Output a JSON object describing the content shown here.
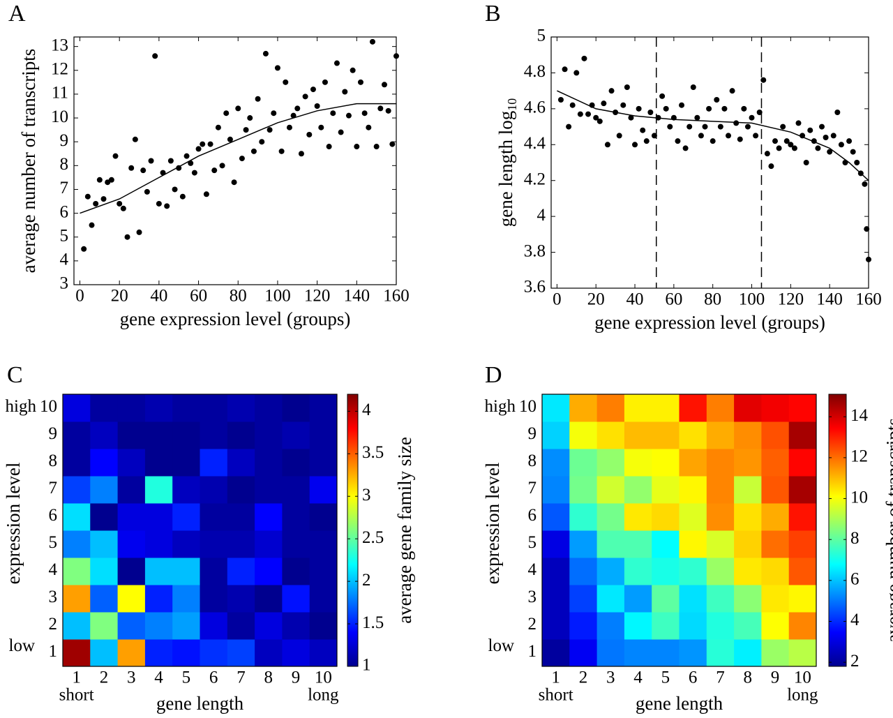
{
  "chart_data": [
    {
      "type": "scatter",
      "panel": "A",
      "xlabel": "gene expression level (groups)",
      "ylabel": "average number of transcripts",
      "color": "#000000",
      "xlim": [
        -3,
        160
      ],
      "ylim": [
        3,
        13.4
      ],
      "xticks": [
        0,
        20,
        40,
        60,
        80,
        100,
        120,
        140,
        160
      ],
      "yticks": [
        3,
        4,
        5,
        6,
        7,
        8,
        9,
        10,
        11,
        12,
        13
      ],
      "x": [
        2,
        4,
        6,
        8,
        10,
        12,
        14,
        16,
        18,
        20,
        22,
        24,
        26,
        28,
        30,
        32,
        34,
        36,
        38,
        40,
        42,
        44,
        46,
        48,
        50,
        52,
        54,
        56,
        58,
        60,
        62,
        64,
        66,
        68,
        70,
        72,
        74,
        76,
        78,
        80,
        82,
        84,
        86,
        88,
        90,
        92,
        94,
        96,
        98,
        100,
        102,
        104,
        106,
        108,
        110,
        112,
        114,
        116,
        118,
        120,
        122,
        124,
        126,
        128,
        130,
        132,
        134,
        136,
        138,
        140,
        142,
        144,
        146,
        148,
        150,
        152,
        154,
        156,
        158,
        160
      ],
      "y": [
        4.5,
        6.7,
        5.5,
        6.4,
        7.4,
        6.6,
        7.3,
        7.4,
        8.4,
        6.4,
        6.2,
        5.0,
        7.9,
        9.1,
        5.2,
        7.8,
        6.9,
        8.2,
        12.6,
        6.4,
        7.7,
        6.3,
        8.2,
        7.0,
        7.9,
        6.7,
        8.4,
        8.1,
        7.7,
        8.7,
        8.9,
        6.8,
        8.9,
        7.8,
        9.6,
        8.0,
        10.2,
        9.1,
        7.3,
        10.4,
        8.3,
        9.5,
        10.0,
        8.6,
        10.8,
        9.0,
        12.7,
        9.5,
        10.2,
        12.1,
        8.6,
        11.5,
        9.6,
        10.1,
        10.4,
        8.5,
        10.9,
        9.3,
        11.2,
        10.5,
        9.6,
        11.5,
        8.8,
        10.2,
        12.3,
        9.4,
        11.1,
        10.1,
        12.0,
        8.8,
        11.5,
        10.2,
        9.6,
        13.2,
        8.8,
        10.4,
        11.4,
        10.3,
        8.9,
        12.6
      ],
      "fit": {
        "x": [
          0,
          20,
          40,
          60,
          80,
          100,
          120,
          140,
          160
        ],
        "y": [
          6.0,
          6.6,
          7.5,
          8.4,
          9.1,
          9.8,
          10.3,
          10.6,
          10.6
        ]
      }
    },
    {
      "type": "scatter",
      "panel": "B",
      "xlabel": "gene expression level (groups)",
      "ylabel": "gene length log",
      "ylabel_sub": "10",
      "color": "#000000",
      "xlim": [
        -3,
        160
      ],
      "ylim": [
        3.6,
        5
      ],
      "xticks": [
        0,
        20,
        40,
        60,
        80,
        100,
        120,
        140,
        160
      ],
      "yticks": [
        3.6,
        3.8,
        4,
        4.2,
        4.4,
        4.6,
        4.8,
        5
      ],
      "vlines": [
        51,
        105
      ],
      "x": [
        2,
        4,
        6,
        8,
        10,
        12,
        14,
        16,
        18,
        20,
        22,
        24,
        26,
        28,
        30,
        32,
        34,
        36,
        38,
        40,
        42,
        44,
        46,
        48,
        50,
        52,
        54,
        56,
        58,
        60,
        62,
        64,
        66,
        68,
        70,
        72,
        74,
        76,
        78,
        80,
        82,
        84,
        86,
        88,
        90,
        92,
        94,
        96,
        98,
        100,
        102,
        104,
        106,
        108,
        110,
        112,
        114,
        116,
        118,
        120,
        122,
        124,
        126,
        128,
        130,
        132,
        134,
        136,
        138,
        140,
        142,
        144,
        146,
        148,
        150,
        152,
        154,
        156,
        158,
        159,
        160
      ],
      "y": [
        4.65,
        4.82,
        4.5,
        4.62,
        4.8,
        4.57,
        4.88,
        4.57,
        4.62,
        4.55,
        4.53,
        4.63,
        4.4,
        4.7,
        4.58,
        4.45,
        4.62,
        4.72,
        4.55,
        4.4,
        4.6,
        4.48,
        4.42,
        4.58,
        4.45,
        4.55,
        4.67,
        4.6,
        4.5,
        4.55,
        4.42,
        4.62,
        4.38,
        4.5,
        4.72,
        4.55,
        4.45,
        4.5,
        4.6,
        4.42,
        4.65,
        4.5,
        4.6,
        4.45,
        4.7,
        4.52,
        4.43,
        4.6,
        4.5,
        4.55,
        4.45,
        4.58,
        4.76,
        4.35,
        4.28,
        4.42,
        4.38,
        4.5,
        4.42,
        4.4,
        4.38,
        4.52,
        4.45,
        4.3,
        4.48,
        4.42,
        4.38,
        4.5,
        4.44,
        4.36,
        4.45,
        4.58,
        4.4,
        4.3,
        4.42,
        4.36,
        4.3,
        4.24,
        4.18,
        3.93,
        3.76
      ],
      "fit": {
        "x": [
          0,
          20,
          40,
          60,
          80,
          100,
          120,
          140,
          150,
          160
        ],
        "y": [
          4.7,
          4.6,
          4.56,
          4.54,
          4.53,
          4.52,
          4.47,
          4.38,
          4.3,
          4.2
        ]
      }
    },
    {
      "type": "heatmap",
      "panel": "C",
      "xlabel": "gene length",
      "ylabel": "expression level",
      "colorbar_label": "average gene family size",
      "colormap": "jet",
      "xcategories": [
        "1",
        "2",
        "3",
        "4",
        "5",
        "6",
        "7",
        "8",
        "9",
        "10"
      ],
      "ycategories": [
        "1",
        "2",
        "3",
        "4",
        "5",
        "6",
        "7",
        "8",
        "9",
        "10"
      ],
      "x_end_labels": [
        "short",
        "long"
      ],
      "y_end_labels": [
        "low",
        "high"
      ],
      "zlim": [
        1,
        4.2
      ],
      "zticks": [
        1,
        1.5,
        2,
        2.5,
        3,
        3.5,
        4
      ],
      "z": [
        [
          4.1,
          2.0,
          3.3,
          1.5,
          1.45,
          1.55,
          1.6,
          1.2,
          1.3,
          1.2
        ],
        [
          2.0,
          2.6,
          1.7,
          1.8,
          1.9,
          1.3,
          1.1,
          1.3,
          1.15,
          1.05
        ],
        [
          3.3,
          1.7,
          3.0,
          1.5,
          1.8,
          1.1,
          1.15,
          1.05,
          1.45,
          1.1
        ],
        [
          2.6,
          2.1,
          1.05,
          2.0,
          2.0,
          1.1,
          1.5,
          1.4,
          1.05,
          1.1
        ],
        [
          1.8,
          2.0,
          1.35,
          1.3,
          1.2,
          1.15,
          1.15,
          1.25,
          1.1,
          1.1
        ],
        [
          2.1,
          1.05,
          1.3,
          1.3,
          1.5,
          1.1,
          1.1,
          1.4,
          1.1,
          1.05
        ],
        [
          1.6,
          1.8,
          1.1,
          2.3,
          1.2,
          1.15,
          1.05,
          1.1,
          1.1,
          1.35
        ],
        [
          1.1,
          1.4,
          1.2,
          1.05,
          1.05,
          1.5,
          1.2,
          1.1,
          1.05,
          1.1
        ],
        [
          1.1,
          1.2,
          1.05,
          1.05,
          1.05,
          1.1,
          1.05,
          1.1,
          1.15,
          1.1
        ],
        [
          1.3,
          1.1,
          1.1,
          1.15,
          1.1,
          1.1,
          1.15,
          1.1,
          1.05,
          1.1
        ]
      ]
    },
    {
      "type": "heatmap",
      "panel": "D",
      "xlabel": "gene length",
      "ylabel": "expression level",
      "colorbar_label": "average number of transcripts",
      "colormap": "jet",
      "xcategories": [
        "1",
        "2",
        "3",
        "4",
        "5",
        "6",
        "7",
        "8",
        "9",
        "10"
      ],
      "ycategories": [
        "1",
        "2",
        "3",
        "4",
        "5",
        "6",
        "7",
        "8",
        "9",
        "10"
      ],
      "x_end_labels": [
        "short",
        "long"
      ],
      "y_end_labels": [
        "low",
        "high"
      ],
      "zlim": [
        1.8,
        15.1
      ],
      "zticks": [
        2,
        4,
        6,
        8,
        10,
        12,
        14
      ],
      "z": [
        [
          2.2,
          3.3,
          5.0,
          5.2,
          5.2,
          5.4,
          7.3,
          6.6,
          8.8,
          9.2
        ],
        [
          2.6,
          3.8,
          5.1,
          6.7,
          7.6,
          6.3,
          7.2,
          7.7,
          10.1,
          11.7
        ],
        [
          2.6,
          4.3,
          6.5,
          5.5,
          8,
          6.4,
          7.6,
          8.6,
          10.4,
          10.2
        ],
        [
          2.6,
          4.9,
          5.7,
          7.4,
          7.1,
          7.4,
          8.8,
          10.4,
          10.6,
          12.3
        ],
        [
          3.1,
          5.5,
          7.8,
          7.8,
          6.8,
          10.2,
          9.6,
          10.7,
          12,
          12.6
        ],
        [
          4.6,
          7.4,
          8.3,
          10.4,
          10.6,
          9.7,
          11.6,
          10.5,
          11.2,
          13.2
        ],
        [
          5.2,
          8.3,
          9.5,
          8.7,
          9.8,
          10.2,
          11.7,
          9.4,
          12.3,
          14.6
        ],
        [
          5.3,
          8.2,
          8.7,
          10,
          10.1,
          11.3,
          11.7,
          11.5,
          12.2,
          13.4
        ],
        [
          6.2,
          10,
          10.5,
          11,
          11,
          10.5,
          11.2,
          11.6,
          12.4,
          14.6
        ],
        [
          6.5,
          11.2,
          11.8,
          10.3,
          10.3,
          13.2,
          11.8,
          13.8,
          13.6,
          13.4
        ]
      ]
    }
  ]
}
